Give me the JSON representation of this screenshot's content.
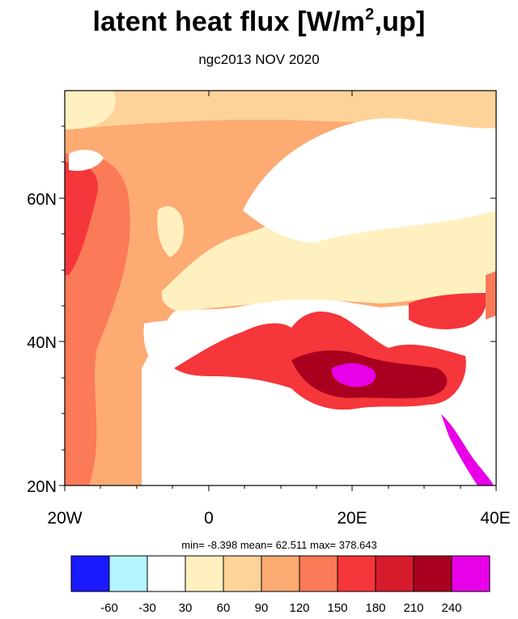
{
  "title": {
    "main": "latent heat flux [W/m",
    "sup": "2",
    "tail": ",up]"
  },
  "subtitle": "ngc2013 NOV 2020",
  "stats": "min=  -8.398  mean=  62.511  max= 378.643",
  "map": {
    "lon_range": [
      -20,
      40
    ],
    "lat_range": [
      20,
      75
    ],
    "lon_ticks": [
      "20W",
      "0",
      "20E",
      "40E"
    ],
    "lat_ticks": [
      "20N",
      "40N",
      "60N"
    ]
  },
  "colorbar": {
    "colors": [
      "#1a1aff",
      "#b3f5ff",
      "#ffffff",
      "#fff0c0",
      "#fed39a",
      "#fdaa73",
      "#fb7a58",
      "#f5363a",
      "#d61c2c",
      "#a8001e",
      "#e800e8"
    ],
    "labels": [
      "-60",
      "-30",
      "30",
      "60",
      "90",
      "120",
      "150",
      "180",
      "210",
      "240"
    ]
  }
}
